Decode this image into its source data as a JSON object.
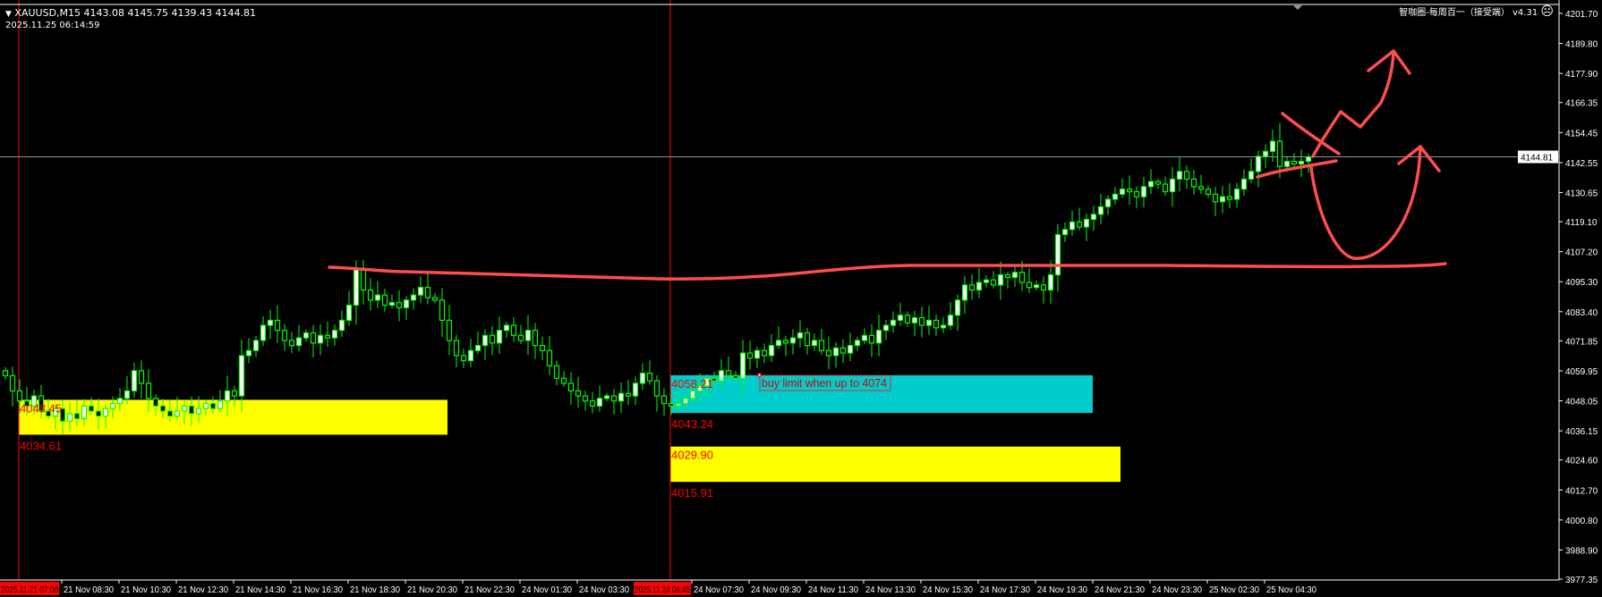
{
  "header": {
    "symbol_line": "XAUUSD,M15  4143.08 4145.75 4139.43 4144.81",
    "timestamp": "2025.11.25 06:14:59",
    "indicator_label": "智咖圈-每周百一（接受端） v4.31",
    "indicator_icon": "sad-face-icon",
    "menu_icon": "triangle-down-icon"
  },
  "colors": {
    "background": "#000000",
    "candle_outline": "#00ff00",
    "bull_fill": "#ffffff",
    "bear_fill": "#000000",
    "yellow_zone": "#ffff00",
    "cyan_zone": "#00cccc",
    "zone_label": "#ff0000",
    "drawing": "#ff4d4d",
    "bid_line": "#8899aa"
  },
  "price_axis": {
    "ticks": [
      "4201.70",
      "4189.80",
      "4177.90",
      "4166.35",
      "4154.45",
      "4142.55",
      "4130.65",
      "4119.10",
      "4107.20",
      "4095.30",
      "4083.40",
      "4071.85",
      "4059.95",
      "4048.05",
      "4036.15",
      "4024.60",
      "4012.70",
      "4000.80",
      "3988.90",
      "3977.35"
    ],
    "current_price": "4144.81"
  },
  "time_axis": {
    "highlighted_left": "2025.11.21 07:00",
    "highlighted_mid": "2025.11.24 06:45",
    "labels": [
      "21 Nov 08:30",
      "21 Nov 10:30",
      "21 Nov 12:30",
      "21 Nov 14:30",
      "21 Nov 16:30",
      "21 Nov 18:30",
      "21 Nov 20:30",
      "21 Nov 22:30",
      "24 Nov 01:30",
      "24 Nov 03:30",
      "24 Nov 07:30",
      "24 Nov 09:30",
      "24 Nov 11:30",
      "24 Nov 13:30",
      "24 Nov 15:30",
      "24 Nov 17:30",
      "24 Nov 19:30",
      "24 Nov 21:30",
      "24 Nov 23:30",
      "25 Nov 02:30",
      "25 Nov 04:30"
    ]
  },
  "zones": [
    {
      "top_label": "4048.45",
      "bottom_label": "4034.61",
      "top": 4048.45,
      "bottom": 4034.61,
      "color": "#ffff00"
    },
    {
      "top_label": "4058.21",
      "bottom_label": "4043.24",
      "top": 4058.21,
      "bottom": 4043.24,
      "color": "#00cccc"
    },
    {
      "top_label": "4029.90",
      "bottom_label": "4015.91",
      "top": 4029.9,
      "bottom": 4015.91,
      "color": "#ffff00"
    }
  ],
  "annotation": {
    "text": "buy limit when up to 4074"
  },
  "chart_data": {
    "type": "candlestick",
    "symbol": "XAUUSD",
    "timeframe": "M15",
    "ylim": [
      3977.35,
      4201.7
    ],
    "closes": [
      4058,
      4052,
      4048,
      4046,
      4050,
      4044,
      4042,
      4045,
      4040,
      4043,
      4041,
      4046,
      4044,
      4042,
      4045,
      4047,
      4049,
      4052,
      4060,
      4055,
      4049,
      4046,
      4044,
      4042,
      4044,
      4046,
      4043,
      4045,
      4047,
      4045,
      4048,
      4052,
      4050,
      4066,
      4068,
      4072,
      4078,
      4080,
      4076,
      4072,
      4070,
      4073,
      4075,
      4071,
      4074,
      4073,
      4076,
      4080,
      4086,
      4100,
      4092,
      4088,
      4090,
      4086,
      4087,
      4085,
      4088,
      4090,
      4093,
      4089,
      4088,
      4080,
      4072,
      4066,
      4064,
      4068,
      4070,
      4074,
      4071,
      4076,
      4078,
      4074,
      4072,
      4076,
      4070,
      4068,
      4062,
      4057,
      4055,
      4052,
      4050,
      4048,
      4046,
      4049,
      4050,
      4048,
      4051,
      4050,
      4055,
      4059,
      4056,
      4050,
      4047,
      4046,
      4047,
      4049,
      4052,
      4054,
      4057,
      4056,
      4060,
      4058,
      4057,
      4067,
      4065,
      4068,
      4066,
      4070,
      4072,
      4071,
      4073,
      4075,
      4070,
      4072,
      4068,
      4066,
      4069,
      4067,
      4070,
      4072,
      4074,
      4071,
      4076,
      4078,
      4080,
      4082,
      4079,
      4081,
      4078,
      4080,
      4077,
      4078,
      4082,
      4088,
      4094,
      4092,
      4095,
      4096,
      4094,
      4098,
      4097,
      4099,
      4095,
      4093,
      4094,
      4092,
      4098,
      4114,
      4116,
      4119,
      4117,
      4120,
      4122,
      4125,
      4128,
      4130,
      4132,
      4131,
      4129,
      4133,
      4135,
      4134,
      4131,
      4136,
      4139,
      4136,
      4133,
      4132,
      4130,
      4127,
      4129,
      4128,
      4132,
      4136,
      4139,
      4145,
      4147,
      4151,
      4141,
      4143,
      4142,
      4143,
      4144.81
    ]
  }
}
